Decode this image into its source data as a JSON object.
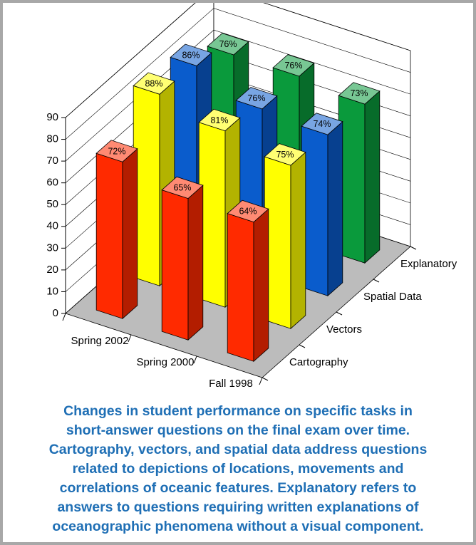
{
  "chart_data": {
    "type": "bar3d",
    "categories": [
      "Spring 2002",
      "Spring 2000",
      "Fall 1998"
    ],
    "series": [
      {
        "name": "Cartography",
        "color": "#ff2a00",
        "values": [
          72,
          65,
          64
        ],
        "value_labels": [
          "72%",
          "65%",
          "64%"
        ]
      },
      {
        "name": "Vectors",
        "color": "#ffff00",
        "values": [
          88,
          81,
          75
        ],
        "value_labels": [
          "88%",
          "81%",
          "75%"
        ]
      },
      {
        "name": "Spatial Data",
        "color": "#0a5ccc",
        "values": [
          86,
          76,
          74
        ],
        "value_labels": [
          "86%",
          "76%",
          "74%"
        ]
      },
      {
        "name": "Explanatory",
        "color": "#0a9a3c",
        "values": [
          76,
          76,
          73
        ],
        "value_labels": [
          "76%",
          "76%",
          "73%"
        ]
      }
    ],
    "ylim": [
      0,
      90
    ],
    "yticks": [
      0,
      10,
      20,
      30,
      40,
      50,
      60,
      70,
      80,
      90
    ],
    "grid": true,
    "caption": [
      "Changes in student performance on specific tasks in",
      "short-answer questions on the final exam over time.",
      "Cartography, vectors, and spatial data address questions",
      "related to depictions of locations, movements and",
      "correlations of oceanic features. Explanatory refers to",
      "answers to questions requiring written explanations of",
      "oceanographic phenomena without a visual component."
    ]
  }
}
